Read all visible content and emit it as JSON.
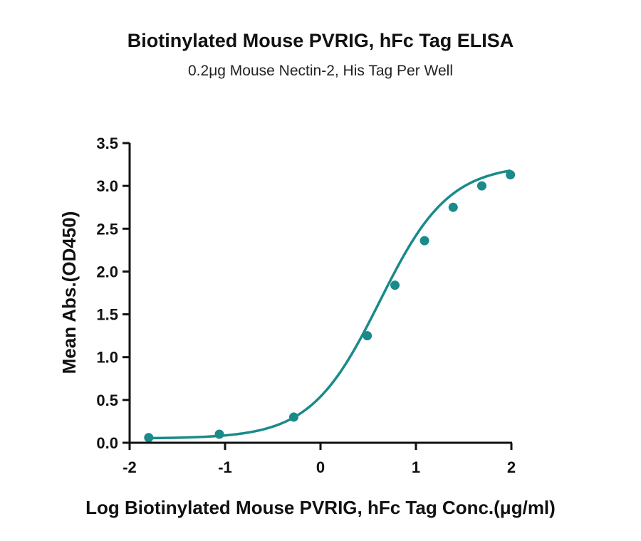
{
  "chart_data": {
    "type": "line",
    "title": "Biotinylated Mouse PVRIG, hFc Tag ELISA",
    "subtitle": "0.2μg Mouse Nectin-2, His Tag Per Well",
    "xlabel": "Log Biotinylated Mouse PVRIG, hFc  Tag Conc.(μg/ml)",
    "ylabel": "Mean Abs.(OD450)",
    "xlim": [
      -2,
      2
    ],
    "ylim": [
      0,
      3.5
    ],
    "xticks": [
      "-2",
      "-1",
      "0",
      "1",
      "2"
    ],
    "yticks": [
      "0.0",
      "0.5",
      "1.0",
      "1.5",
      "2.0",
      "2.5",
      "3.0",
      "3.5"
    ],
    "grid": false,
    "color": "#1a8a8a",
    "series": [
      {
        "x": [
          -1.8,
          -1.06,
          -0.28,
          0.49,
          0.78,
          1.09,
          1.39,
          1.69,
          1.99
        ],
        "y": [
          0.06,
          0.1,
          0.3,
          1.25,
          1.84,
          2.36,
          2.75,
          3.0,
          3.13
        ]
      }
    ],
    "fit_curve": {
      "type": "4PL",
      "bottom": 0.05,
      "top": 3.25,
      "logEC50": 0.62,
      "hill": 1.2
    }
  }
}
